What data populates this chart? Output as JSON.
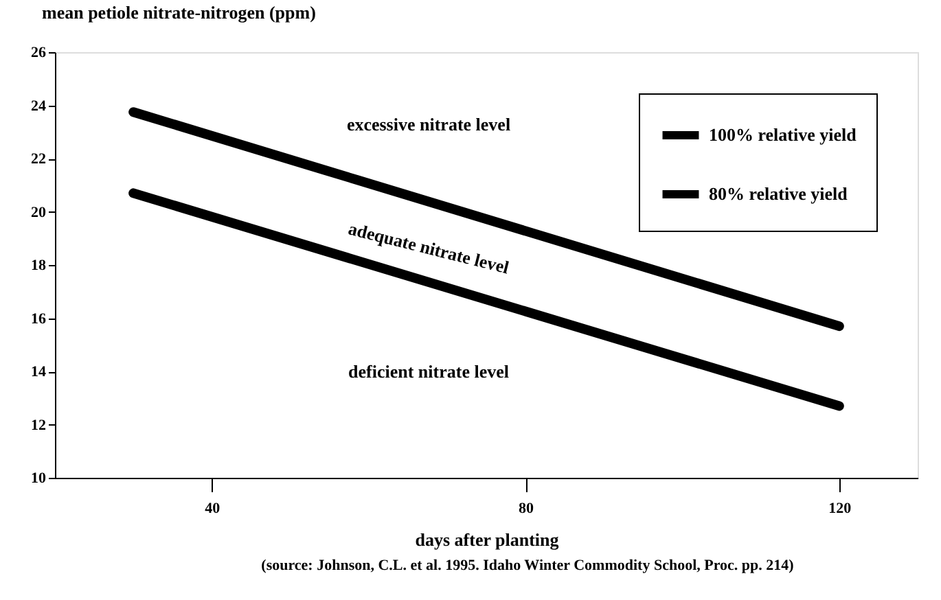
{
  "chart_data": {
    "type": "line",
    "ylabel": "mean petiole nitrate-nitrogen (ppm)",
    "xlabel": "days after planting",
    "x": [
      30,
      120
    ],
    "series": [
      {
        "name": "100% relative yield",
        "color": "#000000",
        "values": [
          23.75,
          15.7
        ]
      },
      {
        "name": "80% relative yield",
        "color": "#000000",
        "values": [
          20.7,
          12.7
        ]
      }
    ],
    "xlim": [
      20,
      130
    ],
    "xticks": [
      40,
      80,
      120
    ],
    "ylim": [
      10,
      26
    ],
    "yticks": [
      10,
      12,
      14,
      16,
      18,
      20,
      22,
      24,
      26
    ],
    "annotations": [
      "excessive nitrate level",
      "adequate nitrate level",
      "deficient nitrate level",
      "(source: Johnson, C.L. et al. 1995. Idaho Winter Commodity School, Proc. pp. 214)"
    ],
    "legend": "top right",
    "grid": false,
    "marker": "none",
    "line_style": "solid"
  }
}
